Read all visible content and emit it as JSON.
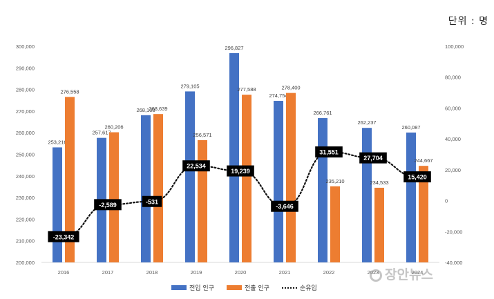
{
  "unit_label": "단위 : 명",
  "watermark": "장안뉴스",
  "colors": {
    "inflow": "#4472C4",
    "outflow": "#ED7D31",
    "net": "#111111"
  },
  "chart_data": {
    "type": "bar",
    "categories": [
      "2016",
      "2017",
      "2018",
      "2019",
      "2020",
      "2021",
      "2022",
      "2023",
      "2024"
    ],
    "series": [
      {
        "name": "전입 인구",
        "type": "bar",
        "axis": "left",
        "values": [
          253216,
          257617,
          268108,
          279105,
          296827,
          274754,
          266761,
          262237,
          260087
        ],
        "labels": [
          "253,216",
          "257,617",
          "268,108",
          "279,105",
          "296,827",
          "274,754",
          "266,761",
          "262,237",
          "260,087"
        ]
      },
      {
        "name": "전출 인구",
        "type": "bar",
        "axis": "left",
        "values": [
          276558,
          260206,
          268639,
          256571,
          277588,
          278400,
          235210,
          234533,
          244667
        ],
        "labels": [
          "276,558",
          "260,206",
          "268,639",
          "256,571",
          "277,588",
          "278,400",
          "235,210",
          "234,533",
          "244,667"
        ]
      },
      {
        "name": "순유입",
        "type": "line",
        "axis": "right",
        "values": [
          -23342,
          -2589,
          -531,
          22534,
          19239,
          -3646,
          31551,
          27704,
          15420
        ],
        "labels": [
          "-23,342",
          "-2,589",
          "-531",
          "22,534",
          "19,239",
          "-3,646",
          "31,551",
          "27,704",
          "15,420"
        ]
      }
    ],
    "ylim_left": [
      200000,
      300000
    ],
    "ylim_right": [
      -40000,
      100000
    ],
    "left_ticks": [
      "200,000",
      "210,000",
      "220,000",
      "230,000",
      "240,000",
      "250,000",
      "260,000",
      "270,000",
      "280,000",
      "290,000",
      "300,000"
    ],
    "right_ticks": [
      "-40,000",
      "-20,000",
      "0",
      "20,000",
      "40,000",
      "60,000",
      "80,000",
      "100,000"
    ],
    "left_tick_values": [
      200000,
      210000,
      220000,
      230000,
      240000,
      250000,
      260000,
      270000,
      280000,
      290000,
      300000
    ],
    "right_tick_values": [
      -40000,
      -20000,
      0,
      20000,
      40000,
      60000,
      80000,
      100000
    ],
    "grid": false,
    "legend_position": "bottom"
  }
}
